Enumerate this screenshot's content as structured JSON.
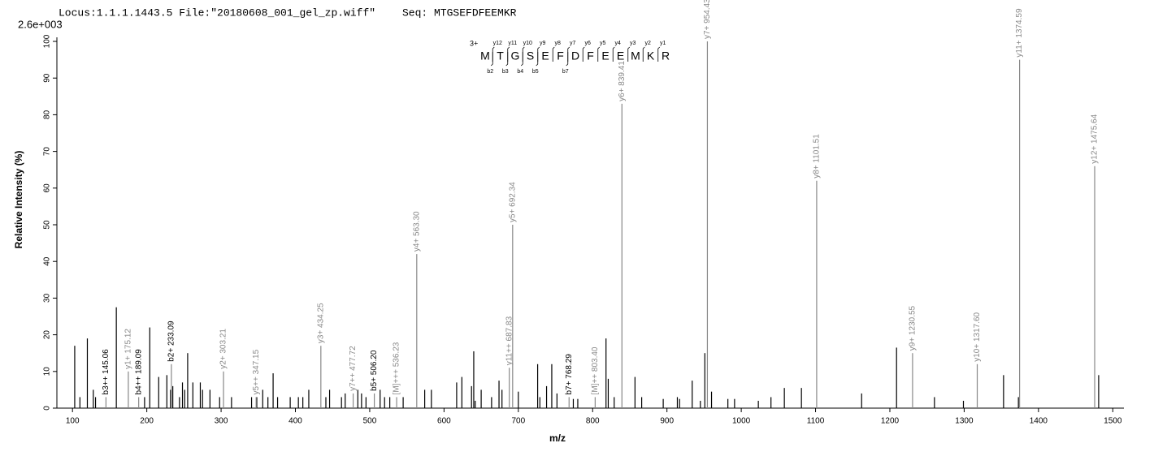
{
  "chart_data": {
    "type": "spectrum",
    "header": "Locus:1.1.1.1443.5 File:\"20180608_001_gel_zp.wiff\"",
    "sequence_title": "Seq: MTGSEFDFEEMKR",
    "base_intensity": "2.6e+003",
    "ylabel": "Relative   Intensity (%)",
    "xlabel": "m/z",
    "xlim": [
      79,
      1515
    ],
    "ylim": [
      0,
      101
    ],
    "xticks": [
      100,
      200,
      300,
      400,
      500,
      600,
      700,
      800,
      900,
      1000,
      1100,
      1200,
      1300,
      1400,
      1500
    ],
    "yticks": [
      0,
      10,
      20,
      30,
      40,
      50,
      60,
      70,
      80,
      90,
      100
    ],
    "peaks": {
      "color": "#000000",
      "x": [
        103,
        110,
        120,
        128,
        131,
        159,
        197,
        204,
        216,
        227,
        232,
        235,
        244,
        248,
        251,
        255,
        262,
        272,
        275,
        285,
        298,
        314,
        341,
        348,
        356,
        363,
        370,
        376,
        393,
        404,
        410,
        418,
        441,
        446,
        462,
        467,
        484,
        489,
        495,
        514,
        520,
        527,
        545,
        574,
        583,
        617,
        624,
        637,
        640,
        642,
        650,
        664,
        674,
        678,
        700,
        726,
        729,
        738,
        745,
        752,
        774,
        780,
        818,
        821,
        829,
        857,
        866,
        895,
        914,
        917,
        934,
        945,
        951,
        960,
        982,
        991,
        1023,
        1040,
        1058,
        1081,
        1162,
        1209,
        1260,
        1299,
        1353,
        1373,
        1481
      ],
      "values": [
        17,
        3,
        19,
        5,
        3,
        27.5,
        3,
        22,
        8.5,
        9,
        5,
        6,
        3,
        7,
        5,
        15,
        7,
        7,
        5,
        5,
        3,
        3,
        3,
        3,
        5,
        3,
        9.5,
        3,
        3,
        3,
        3,
        5,
        3,
        5,
        3,
        4,
        5,
        4,
        3,
        5,
        3,
        3,
        3,
        5,
        5,
        7,
        8.5,
        6,
        15.5,
        2,
        5,
        3,
        7.5,
        5,
        4.5,
        12,
        3,
        6,
        12,
        4,
        2.5,
        2.5,
        19,
        8,
        3,
        8.5,
        3,
        2.5,
        3,
        2.5,
        7.5,
        2,
        15,
        4.5,
        2.5,
        2.5,
        2,
        3,
        5.5,
        5.5,
        4,
        16.5,
        3,
        2,
        9,
        3,
        9
      ]
    },
    "annotated_peaks": {
      "color": "#888888",
      "x": [
        145.06,
        175.12,
        189.09,
        233.09,
        303.21,
        347.15,
        434.25,
        477.72,
        506.2,
        536.23,
        563.3,
        687.83,
        692.34,
        768.29,
        803.4,
        839.41,
        954.43,
        1101.51,
        1230.55,
        1317.6,
        1374.59,
        1475.64
      ],
      "values": [
        3,
        10,
        3,
        12,
        10,
        3,
        17,
        4,
        4,
        3,
        42,
        11,
        50,
        3,
        3,
        83,
        100,
        62,
        15,
        12,
        95,
        66
      ],
      "labels": [
        "b3++ 145.06",
        "y1+ 175.12",
        "b4++ 189.09",
        "b2+ 233.09",
        "y2+ 303.21",
        "y5++ 347.15",
        "y3+ 434.25",
        "y7++ 477.72",
        "b5+ 506.20",
        "[M]+++ 536.23",
        "y4+ 563.30",
        "y11++ 687.83",
        "y5+ 692.34",
        "b7+ 768.29",
        "[M]++ 803.40",
        "y6+ 839.41",
        "y7+ 954.43",
        "y8+ 1101.51",
        "y9+ 1230.55",
        "y10+ 1317.60",
        "y11+ 1374.59",
        "y12+ 1475.64"
      ],
      "label_colors": [
        "#000000",
        "#888888",
        "#000000",
        "#000000",
        "#888888",
        "#888888",
        "#888888",
        "#888888",
        "#000000",
        "#888888",
        "#888888",
        "#888888",
        "#888888",
        "#000000",
        "#888888",
        "#888888",
        "#888888",
        "#888888",
        "#888888",
        "#888888",
        "#888888",
        "#888888"
      ]
    },
    "sequence_map": {
      "charge": "3+",
      "residues": [
        "M",
        "T",
        "G",
        "S",
        "E",
        "F",
        "D",
        "F",
        "E",
        "E",
        "M",
        "K",
        "R"
      ],
      "y_ions": [
        "y12",
        "y11",
        "y10",
        "y9",
        "y8",
        "y7",
        "y6",
        "y5",
        "y4",
        "y3",
        "y2",
        "y1"
      ],
      "b_ions": [
        "b2",
        "b3",
        "b4",
        "b5",
        "",
        "b7",
        "",
        "",
        "",
        "",
        "",
        ""
      ]
    }
  }
}
